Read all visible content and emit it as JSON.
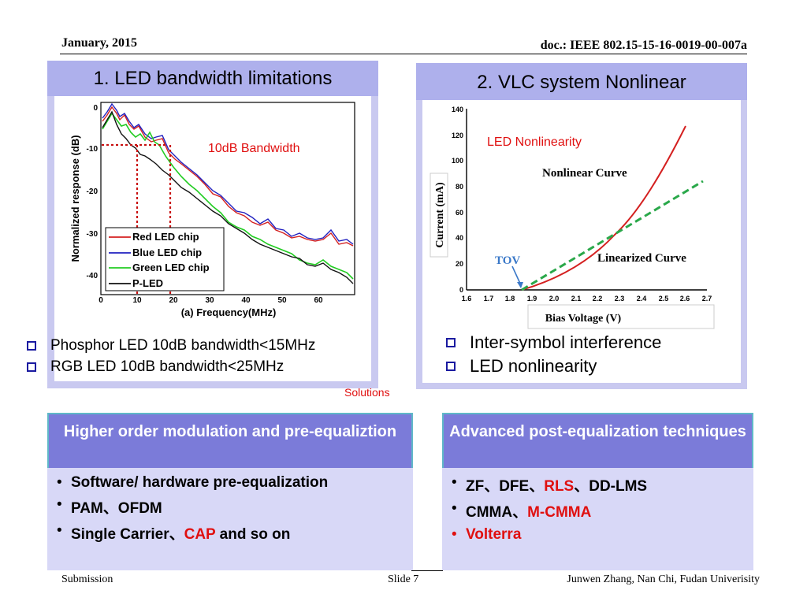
{
  "header": {
    "date": "January, 2015",
    "doc": "doc.: IEEE 802.15-15-16-0019-00-007a"
  },
  "footer": {
    "left": "Submission",
    "center": "Slide 7",
    "right": "Junwen Zhang, Nan Chi, Fudan Univerisity"
  },
  "panel_left": {
    "title": "1. LED bandwidth limitations",
    "annotation": "10dB Bandwidth",
    "bullets": [
      "Phosphor LED 10dB bandwidth<15MHz",
      "RGB LED 10dB bandwidth<25MHz"
    ],
    "chart": {
      "ylabel": "Normalized response (dB)",
      "xlabel": "(a) Frequency(MHz)",
      "xticks": [
        "0",
        "10",
        "20",
        "30",
        "40",
        "50",
        "60"
      ],
      "yticks": [
        "0",
        "-10",
        "-20",
        "-30",
        "-40"
      ],
      "legend": [
        "Red LED chip",
        "Blue LED chip",
        "Green LED chip",
        "P-LED"
      ]
    }
  },
  "panel_right": {
    "title": "2. VLC system Nonlinear",
    "annotation": "LED Nonlinearity",
    "bullets": [
      "Inter-symbol interference",
      "LED nonlinearity"
    ],
    "chart": {
      "ylabel": "Current (mA)",
      "xlabel": "Bias Voltage (V)",
      "xticks": [
        "1.6",
        "1.7",
        "1.8",
        "1.9",
        "2.0",
        "2.1",
        "2.2",
        "2.3",
        "2.4",
        "2.5",
        "2.6",
        "2.7"
      ],
      "yticks": [
        "0",
        "20",
        "40",
        "60",
        "80",
        "100",
        "120",
        "140"
      ],
      "label_nonlinear": "Nonlinear Curve",
      "label_linear": "Linearized Curve",
      "label_tov": "TOV"
    }
  },
  "solutions_label": "Solutions",
  "box_left": {
    "title": "Higher order modulation and pre-equaliztion",
    "items": [
      [
        {
          "t": "Software/ hardware pre-equalization"
        }
      ],
      [
        {
          "t": "PAM、OFDM"
        }
      ],
      [
        {
          "t": "Single Carrier、"
        },
        {
          "t": "CAP",
          "red": true
        },
        {
          "t": " and so on"
        }
      ]
    ]
  },
  "box_right": {
    "title": "Advanced post-equalization techniques",
    "items": [
      [
        {
          "t": "ZF、DFE、"
        },
        {
          "t": "RLS",
          "red": true
        },
        {
          "t": "、DD-LMS"
        }
      ],
      [
        {
          "t": "CMMA、"
        },
        {
          "t": "M-CMMA",
          "red": true
        }
      ],
      [
        {
          "t": "Volterra",
          "red": true
        }
      ]
    ]
  },
  "colors": {
    "panel_bg": "#c9c9f0",
    "title_bg": "#aeb0ec",
    "box_head": "#7b7bd9",
    "box_body": "#d8d8f7",
    "red": "#e01010"
  }
}
